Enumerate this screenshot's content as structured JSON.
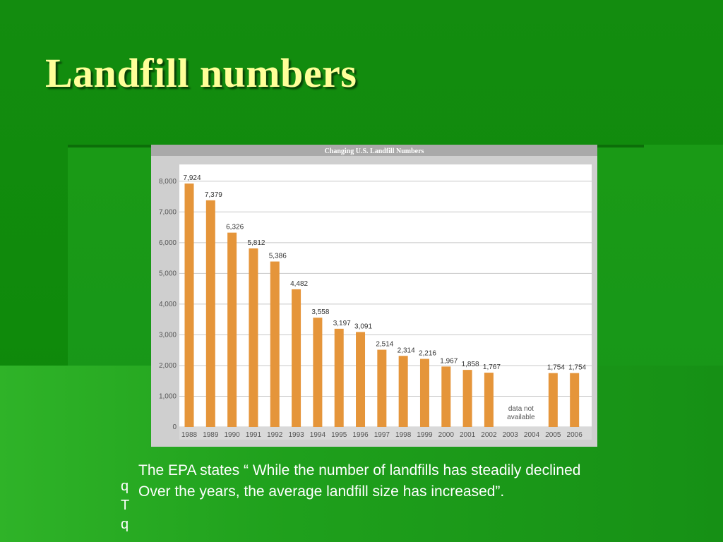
{
  "slide": {
    "title": "Landfill numbers",
    "quote_line1": "The EPA states “ While the number of landfills has steadily declined",
    "quote_line2": "Over the years, the average landfill size has increased”.",
    "bullet_glyphs": [
      "q",
      "T",
      "q"
    ]
  },
  "colors": {
    "bar": "#e5953a",
    "title_text": "#ffff99",
    "background_green": "#138a10",
    "chart_frame": "#cfcfcf"
  },
  "chart_data": {
    "type": "bar",
    "title": "Changing U.S. Landfill Numbers",
    "categories": [
      "1988",
      "1989",
      "1990",
      "1991",
      "1992",
      "1993",
      "1994",
      "1995",
      "1996",
      "1997",
      "1998",
      "1999",
      "2000",
      "2001",
      "2002",
      "2003",
      "2004",
      "2005",
      "2006"
    ],
    "values": [
      7924,
      7379,
      6326,
      5812,
      5386,
      4482,
      3558,
      3197,
      3091,
      2514,
      2314,
      2216,
      1967,
      1858,
      1767,
      null,
      null,
      1754,
      1754
    ],
    "value_labels": [
      "7,924",
      "7,379",
      "6,326",
      "5,812",
      "5,386",
      "4,482",
      "3,558",
      "3,197",
      "3,091",
      "2,514",
      "2,314",
      "2,216",
      "1,967",
      "1,858",
      "1,767",
      "",
      "",
      "1,754",
      "1,754"
    ],
    "yticks": [
      0,
      1000,
      2000,
      3000,
      4000,
      5000,
      6000,
      7000,
      8000
    ],
    "ytick_labels": [
      "0",
      "1,000",
      "2,000",
      "3,000",
      "4,000",
      "5,000",
      "6,000",
      "7,000",
      "8,000"
    ],
    "ylim": [
      0,
      8500
    ],
    "grid": true,
    "annotation": {
      "line1": "data not",
      "line2": "available"
    },
    "xlabel": "",
    "ylabel": ""
  }
}
